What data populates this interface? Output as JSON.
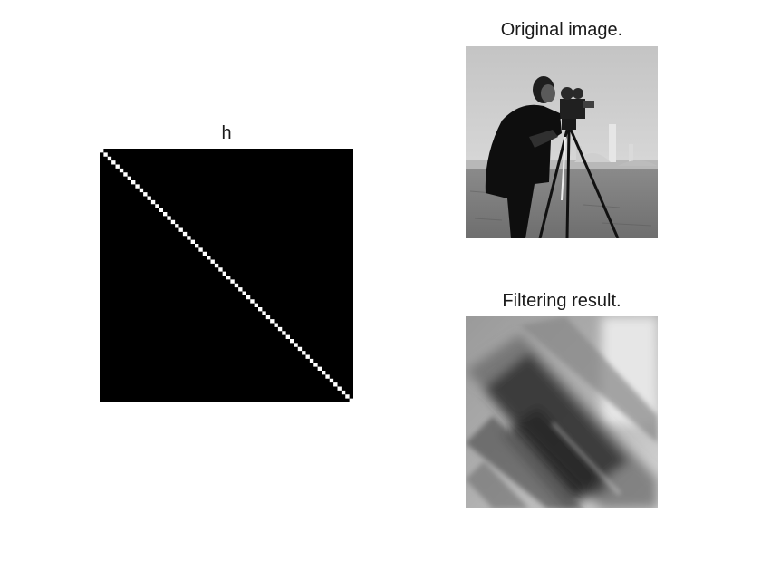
{
  "figure": {
    "panels": [
      {
        "title": "h",
        "content": "filter-kernel-matrix",
        "kernel": {
          "size": 64,
          "pattern": "main-diagonal",
          "on_color": "#ffffff",
          "off_color": "#000000"
        }
      },
      {
        "title": "Original image.",
        "content": "cameraman-photo"
      },
      {
        "title": "Filtering result.",
        "content": "motion-blurred-photo"
      }
    ]
  }
}
